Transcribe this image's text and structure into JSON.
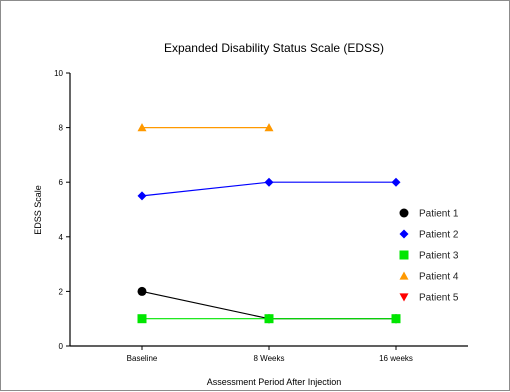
{
  "chart_data": {
    "type": "line",
    "title": "Expanded Disability Status Scale (EDSS)",
    "xlabel": "Assessment Period After Injection",
    "ylabel": "EDSS Scale",
    "categories": [
      "Baseline",
      "8 Weeks",
      "16 weeks"
    ],
    "ylim": [
      0,
      10
    ],
    "yticks": [
      0,
      2,
      4,
      6,
      8,
      10
    ],
    "grid": false,
    "legend_position": "right",
    "series": [
      {
        "name": "Patient 1",
        "values": [
          2,
          1,
          1
        ],
        "color": "#000000",
        "marker": "circle"
      },
      {
        "name": "Patient 2",
        "values": [
          5.5,
          6,
          6
        ],
        "color": "#0000ff",
        "marker": "diamond"
      },
      {
        "name": "Patient 3",
        "values": [
          1,
          1,
          1
        ],
        "color": "#00e600",
        "marker": "square"
      },
      {
        "name": "Patient 4",
        "values": [
          8,
          8,
          null
        ],
        "color": "#ff9900",
        "marker": "triangle-up"
      },
      {
        "name": "Patient 5",
        "values": [
          null,
          null,
          null
        ],
        "color": "#ff0000",
        "marker": "triangle-down"
      }
    ]
  }
}
